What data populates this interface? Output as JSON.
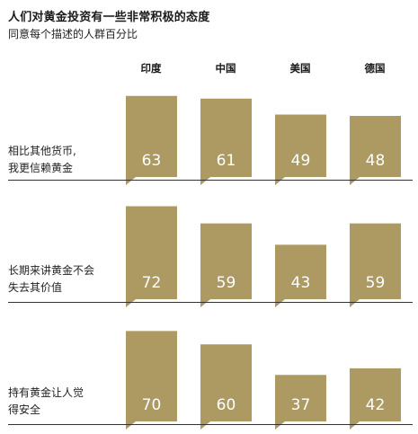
{
  "title": "人们对黄金投资有一些非常积极的态度",
  "subtitle": "同意每个描述的人群百分比",
  "chart_data": {
    "type": "bar",
    "categories": [
      "印度",
      "中国",
      "美国",
      "德国"
    ],
    "statements": [
      {
        "lines": [
          "相比其他货币,",
          "我更信赖黄金"
        ],
        "values": [
          63,
          61,
          49,
          48
        ]
      },
      {
        "lines": [
          "长期来讲黄金不会",
          "失去其价值"
        ],
        "values": [
          72,
          59,
          43,
          59
        ]
      },
      {
        "lines": [
          "持有黄金让人觉",
          "得安全"
        ],
        "values": [
          70,
          60,
          37,
          42
        ]
      }
    ],
    "ylim": [
      0,
      80
    ],
    "bar_color": "#ac9a62",
    "value_label_color": "#ffffff",
    "baseline_color": "#333333"
  }
}
